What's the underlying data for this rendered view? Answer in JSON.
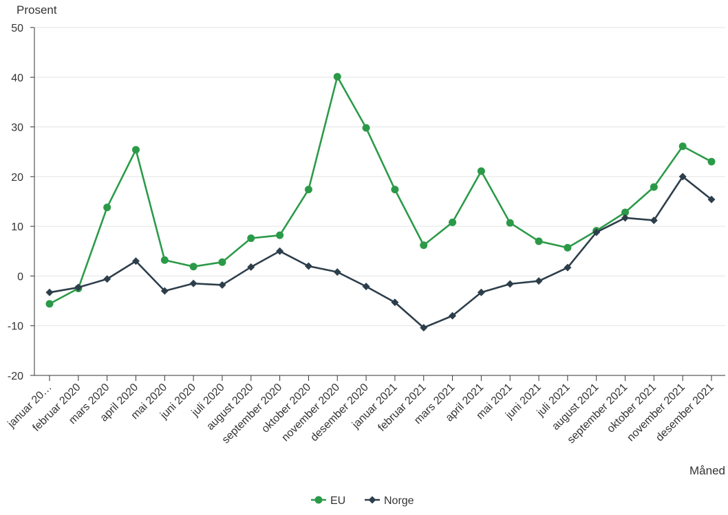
{
  "chart_data": {
    "type": "line",
    "ylabel": "Prosent",
    "xlabel": "Måned",
    "ylim": [
      -20,
      50
    ],
    "yticks": [
      50,
      40,
      30,
      20,
      10,
      0,
      -10,
      -20
    ],
    "grid": "horizontal",
    "legend_position": "bottom-center",
    "categories": [
      "januar 20…",
      "februar 2020",
      "mars 2020",
      "april 2020",
      "mai 2020",
      "juni 2020",
      "juli 2020",
      "august 2020",
      "september 2020",
      "oktober 2020",
      "november 2020",
      "desember 2020",
      "januar 2021",
      "februar 2021",
      "mars 2021",
      "april 2021",
      "mai 2021",
      "juni 2021",
      "juli 2021",
      "august 2021",
      "september 2021",
      "oktober 2021",
      "november 2021",
      "desember 2021"
    ],
    "series": [
      {
        "name": "EU",
        "color": "#2b9a48",
        "marker": "circle",
        "values": [
          -5.6,
          -2.5,
          13.8,
          25.4,
          3.2,
          1.9,
          2.8,
          7.6,
          8.2,
          17.4,
          40.1,
          29.8,
          17.4,
          6.2,
          10.8,
          21.1,
          10.7,
          7.0,
          5.7,
          9.1,
          12.8,
          17.9,
          26.1,
          23.0
        ]
      },
      {
        "name": "Norge",
        "color": "#2d3e4b",
        "marker": "diamond",
        "values": [
          -3.3,
          -2.3,
          -0.6,
          3.0,
          -3.0,
          -1.5,
          -1.8,
          1.8,
          5.0,
          2.0,
          0.8,
          -2.1,
          -5.3,
          -10.4,
          -8.0,
          -3.3,
          -1.6,
          -1.0,
          1.7,
          8.8,
          11.7,
          11.2,
          20.0,
          15.4
        ]
      }
    ]
  }
}
